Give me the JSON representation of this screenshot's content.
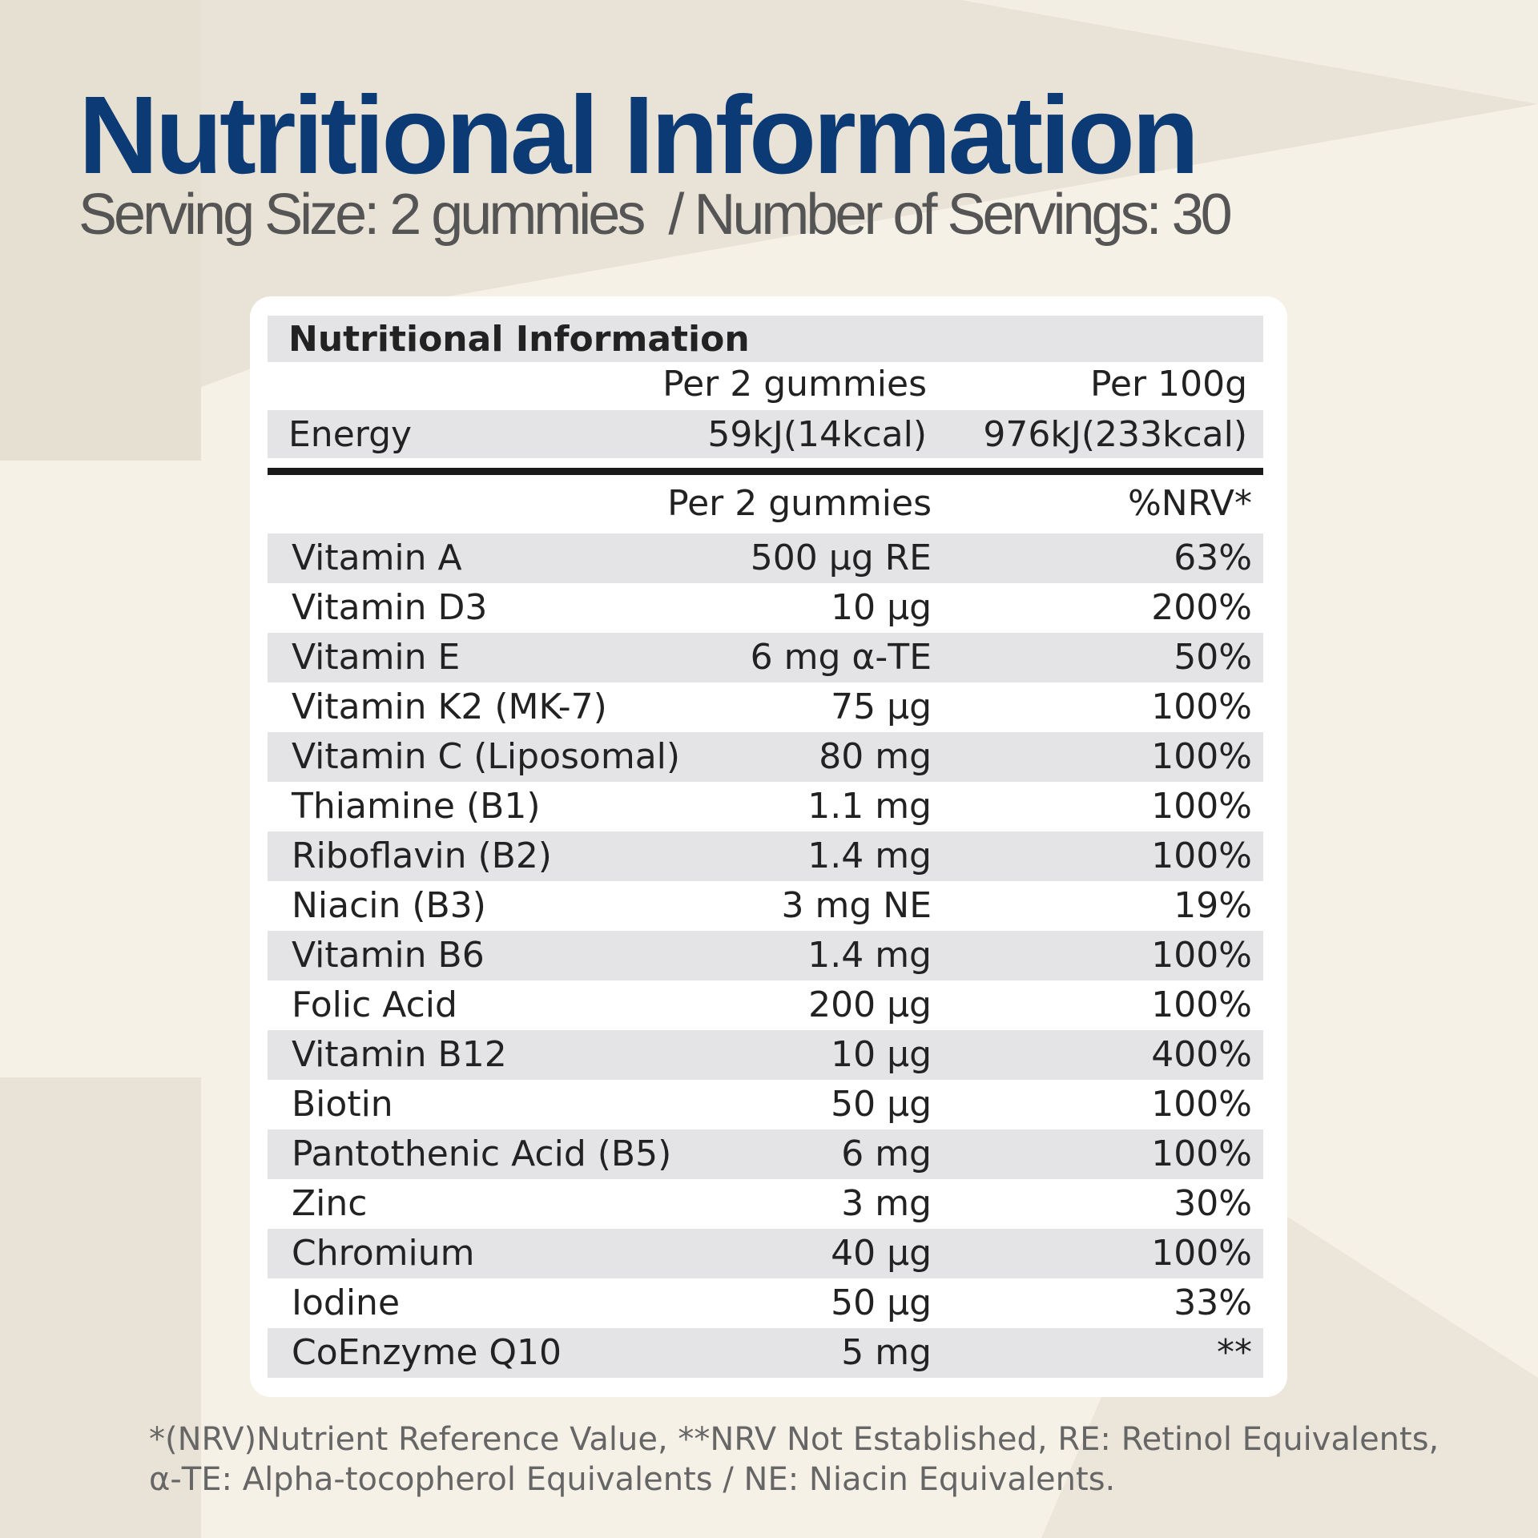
{
  "title": "Nutritional Information",
  "subtitle": "Serving Size: 2 gummies  / Number of Servings: 30",
  "table": {
    "heading": "Nutritional Information",
    "energy_headers": [
      "Per 2 gummies",
      "Per 100g"
    ],
    "energy": {
      "label": "Energy",
      "per_serving": "59kJ(14kcal)",
      "per_100g": "976kJ(233kcal)"
    },
    "nutrient_headers": [
      "Per 2 gummies",
      "%NRV*"
    ],
    "rows": [
      {
        "name": "Vitamin A",
        "amount": "500 µg RE",
        "nrv": "63%"
      },
      {
        "name": "Vitamin D3",
        "amount": "10 µg",
        "nrv": "200%"
      },
      {
        "name": "Vitamin E",
        "amount": "6 mg α-TE",
        "nrv": "50%"
      },
      {
        "name": "Vitamin K2 (MK-7)",
        "amount": "75 µg",
        "nrv": "100%"
      },
      {
        "name": "Vitamin C (Liposomal)",
        "amount": "80 mg",
        "nrv": "100%"
      },
      {
        "name": "Thiamine (B1)",
        "amount": "1.1 mg",
        "nrv": "100%"
      },
      {
        "name": "Riboflavin (B2)",
        "amount": "1.4 mg",
        "nrv": "100%"
      },
      {
        "name": "Niacin (B3)",
        "amount": "3 mg NE",
        "nrv": "19%"
      },
      {
        "name": "Vitamin B6",
        "amount": "1.4 mg",
        "nrv": "100%"
      },
      {
        "name": "Folic Acid",
        "amount": "200 µg",
        "nrv": "100%"
      },
      {
        "name": "Vitamin B12",
        "amount": "10 µg",
        "nrv": "400%"
      },
      {
        "name": "Biotin",
        "amount": "50 µg",
        "nrv": "100%"
      },
      {
        "name": "Pantothenic Acid (B5)",
        "amount": "6 mg",
        "nrv": "100%"
      },
      {
        "name": "Zinc",
        "amount": "3 mg",
        "nrv": "30%"
      },
      {
        "name": "Chromium",
        "amount": "40 µg",
        "nrv": "100%"
      },
      {
        "name": "Iodine",
        "amount": "50 µg",
        "nrv": "33%"
      },
      {
        "name": "CoEnzyme Q10",
        "amount": "5 mg",
        "nrv": "**"
      }
    ]
  },
  "footnote": [
    "*(NRV)Nutrient Reference Value, **NRV Not Established, RE: Retinol Equivalents,",
    "α-TE: Alpha-tocopherol Equivalents / NE: Niacin Equivalents."
  ]
}
